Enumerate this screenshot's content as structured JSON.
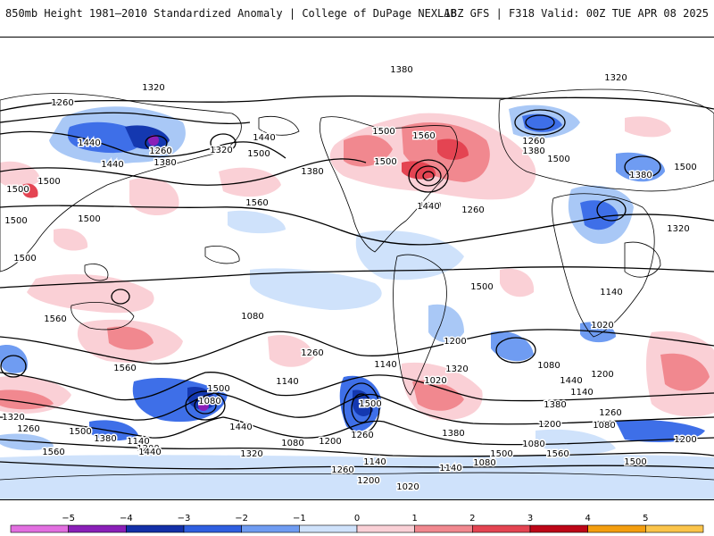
{
  "header": {
    "left_title": "850mb Height 1981–2010 Standardized Anomaly | College of DuPage NEXLAB",
    "right_title": "18Z GFS | F318 Valid: 00Z TUE APR 08 2025"
  },
  "map": {
    "contour_labels": [
      "1380",
      "1320",
      "1260",
      "1320",
      "1260",
      "1440",
      "1500",
      "1380",
      "1440",
      "1560",
      "1500",
      "1260",
      "1380",
      "1320",
      "1440",
      "1500",
      "1500",
      "1380",
      "1560",
      "1500",
      "1500",
      "1500",
      "1500",
      "1380",
      "1500",
      "1500",
      "1500",
      "1560",
      "1560",
      "1500",
      "1440",
      "1260",
      "1320",
      "1200",
      "1080",
      "1140",
      "1260",
      "1140",
      "1020",
      "1080",
      "1200",
      "1500",
      "1560",
      "1500",
      "1440",
      "1380",
      "1200",
      "1080",
      "1320",
      "1140",
      "1020",
      "1080",
      "1260",
      "1200",
      "1140",
      "1380",
      "1500",
      "1440",
      "1320",
      "1260",
      "1200",
      "1080",
      "1140",
      "1140",
      "1020",
      "1080",
      "1200",
      "1260",
      "1140",
      "1200",
      "1260",
      "1320",
      "1560",
      "1500",
      "1380",
      "1440",
      "1500",
      "1080"
    ],
    "colors": {
      "land_outline": "#000000",
      "contour": "#000000"
    }
  },
  "colorbar": {
    "ticks": [
      "−5",
      "−4",
      "−3",
      "−2",
      "−1",
      "0",
      "1",
      "2",
      "3",
      "4",
      "5"
    ],
    "colors": [
      "#e26fe0",
      "#8a1fb8",
      "#1330a8",
      "#2f5fe0",
      "#6f9cf2",
      "#cfe2fb",
      "#fad0d6",
      "#f1888f",
      "#e44452",
      "#bd0617",
      "#f49e0f",
      "#fbc44a"
    ]
  }
}
